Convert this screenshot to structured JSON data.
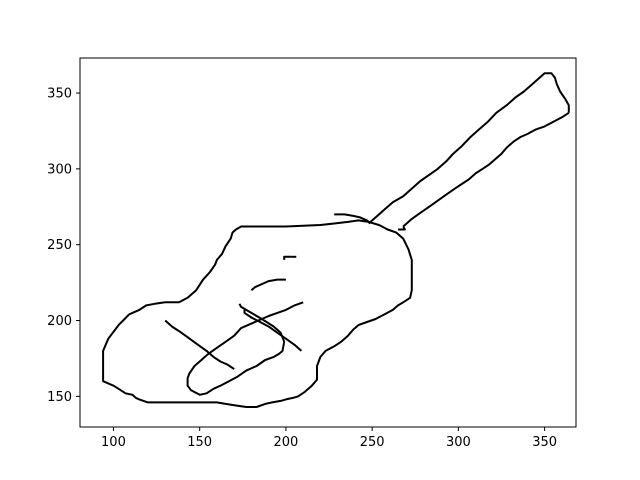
{
  "chart_data": {
    "type": "line",
    "title": "",
    "xlabel": "",
    "ylabel": "",
    "xlim": [
      80.6,
      368.2
    ],
    "ylim": [
      129.8,
      373.1
    ],
    "grid": false,
    "line_color": "#000000",
    "x_ticks": [
      {
        "value": 100,
        "label": "100"
      },
      {
        "value": 150,
        "label": "150"
      },
      {
        "value": 200,
        "label": "200"
      },
      {
        "value": 250,
        "label": "250"
      },
      {
        "value": 300,
        "label": "300"
      },
      {
        "value": 350,
        "label": "350"
      }
    ],
    "y_ticks": [
      {
        "value": 150,
        "label": "150"
      },
      {
        "value": 200,
        "label": "200"
      },
      {
        "value": 250,
        "label": "250"
      },
      {
        "value": 300,
        "label": "300"
      },
      {
        "value": 350,
        "label": "350"
      }
    ],
    "series": [
      {
        "points": [
          [
            109,
            204
          ],
          [
            103,
            197
          ],
          [
            97,
            188
          ],
          [
            94,
            180
          ],
          [
            94,
            170
          ],
          [
            94,
            160
          ],
          [
            100,
            157
          ],
          [
            103,
            155
          ],
          [
            107,
            152
          ],
          [
            111,
            151
          ],
          [
            113,
            149
          ],
          [
            115,
            148
          ],
          [
            120,
            146
          ],
          [
            125,
            146
          ],
          [
            135,
            146
          ],
          [
            145,
            146
          ],
          [
            155,
            146
          ],
          [
            160,
            146
          ],
          [
            165,
            145
          ],
          [
            171,
            144
          ],
          [
            177,
            143
          ],
          [
            183,
            143
          ],
          [
            188,
            145
          ],
          [
            192,
            146
          ],
          [
            197,
            147
          ],
          [
            200,
            148
          ],
          [
            204,
            149
          ],
          [
            207,
            150
          ],
          [
            211,
            153
          ],
          [
            215,
            157
          ],
          [
            218,
            161
          ],
          [
            218,
            170
          ],
          [
            220,
            176
          ],
          [
            223,
            180
          ],
          [
            228,
            183
          ],
          [
            232,
            186
          ],
          [
            236,
            190
          ],
          [
            239,
            194
          ],
          [
            242,
            197
          ],
          [
            247,
            199
          ],
          [
            252,
            201
          ],
          [
            257,
            204
          ],
          [
            262,
            207
          ],
          [
            265,
            210
          ],
          [
            268,
            212
          ],
          [
            272,
            215
          ],
          [
            273,
            220
          ],
          [
            273,
            227
          ],
          [
            273,
            235
          ],
          [
            273,
            240
          ],
          [
            271,
            247
          ],
          [
            268,
            254
          ],
          [
            264,
            258
          ],
          [
            259,
            260
          ],
          [
            254,
            263
          ],
          [
            248,
            265
          ],
          [
            242,
            266
          ],
          [
            236,
            265
          ],
          [
            228,
            264
          ],
          [
            220,
            263
          ],
          [
            200,
            262
          ],
          [
            180,
            262
          ],
          [
            174,
            262
          ],
          [
            171,
            260
          ],
          [
            169,
            258
          ],
          [
            168,
            254
          ],
          [
            165,
            249
          ],
          [
            163,
            244
          ],
          [
            160,
            240
          ],
          [
            159,
            237
          ],
          [
            156,
            232
          ],
          [
            152,
            227
          ],
          [
            148,
            220
          ],
          [
            143,
            215
          ],
          [
            138,
            212
          ],
          [
            130,
            212
          ],
          [
            124,
            211
          ],
          [
            119,
            210
          ],
          [
            115,
            207
          ],
          [
            111,
            205
          ],
          [
            109,
            204
          ]
        ]
      },
      {
        "points": [
          [
            199,
            240
          ],
          [
            199,
            242
          ],
          [
            203,
            242
          ]
        ]
      },
      {
        "points": [
          [
            203,
            242
          ],
          [
            206,
            242
          ]
        ]
      },
      {
        "points": [
          [
            173,
            211
          ],
          [
            174,
            209
          ],
          [
            180,
            205
          ],
          [
            186,
            201
          ],
          [
            193,
            196
          ],
          [
            197,
            192
          ],
          [
            199,
            186
          ],
          [
            198,
            180
          ],
          [
            196,
            178
          ],
          [
            193,
            176
          ],
          [
            188,
            174
          ],
          [
            183,
            170
          ],
          [
            177,
            167
          ],
          [
            172,
            163
          ],
          [
            167,
            160
          ],
          [
            162,
            157
          ],
          [
            158,
            155
          ],
          [
            154,
            152
          ],
          [
            150,
            151
          ],
          [
            145,
            154
          ],
          [
            143,
            157
          ],
          [
            143,
            162
          ],
          [
            144,
            165
          ],
          [
            147,
            170
          ],
          [
            151,
            174
          ],
          [
            155,
            178
          ],
          [
            160,
            182
          ],
          [
            165,
            186
          ],
          [
            170,
            190
          ],
          [
            174,
            195
          ],
          [
            180,
            198
          ],
          [
            186,
            201
          ],
          [
            190,
            203
          ],
          [
            195,
            205
          ],
          [
            200,
            207
          ],
          [
            205,
            210
          ],
          [
            210,
            212
          ]
        ]
      },
      {
        "points": [
          [
            130,
            200
          ],
          [
            134,
            196
          ],
          [
            138,
            193
          ],
          [
            143,
            189
          ],
          [
            149,
            184
          ],
          [
            154,
            180
          ],
          [
            158,
            176
          ],
          [
            162,
            173
          ],
          [
            166,
            171
          ],
          [
            170,
            168
          ]
        ]
      },
      {
        "points": [
          [
            180,
            220
          ],
          [
            182,
            222
          ],
          [
            186,
            224
          ],
          [
            190,
            226
          ],
          [
            195,
            227
          ],
          [
            200,
            227
          ]
        ]
      },
      {
        "points": [
          [
            176,
            207
          ],
          [
            176,
            205
          ],
          [
            180,
            202
          ],
          [
            185,
            199
          ],
          [
            190,
            196
          ],
          [
            195,
            192
          ],
          [
            200,
            188
          ],
          [
            205,
            184
          ],
          [
            209,
            180
          ]
        ]
      },
      {
        "points": [
          [
            228,
            270
          ],
          [
            234,
            270
          ],
          [
            239,
            269
          ],
          [
            243,
            268
          ],
          [
            247,
            266
          ],
          [
            249,
            264
          ]
        ]
      },
      {
        "points": [
          [
            248,
            264
          ],
          [
            252,
            268
          ],
          [
            257,
            273
          ],
          [
            262,
            278
          ],
          [
            268,
            282
          ],
          [
            273,
            287
          ],
          [
            278,
            292
          ],
          [
            283,
            296
          ],
          [
            288,
            300
          ],
          [
            293,
            305
          ],
          [
            297,
            310
          ],
          [
            302,
            315
          ],
          [
            307,
            321
          ],
          [
            312,
            326
          ],
          [
            317,
            331
          ],
          [
            322,
            337
          ],
          [
            328,
            342
          ],
          [
            333,
            347
          ],
          [
            338,
            351
          ],
          [
            342,
            355
          ],
          [
            346,
            359
          ],
          [
            350,
            363
          ],
          [
            354,
            363
          ],
          [
            356,
            360
          ],
          [
            357,
            356
          ],
          [
            359,
            351
          ],
          [
            362,
            346
          ],
          [
            364,
            342
          ],
          [
            364,
            337
          ]
        ]
      },
      {
        "points": [
          [
            364,
            337
          ],
          [
            360,
            334
          ],
          [
            355,
            331
          ],
          [
            350,
            328
          ],
          [
            345,
            326
          ],
          [
            340,
            323
          ],
          [
            336,
            321
          ],
          [
            332,
            318
          ],
          [
            328,
            314
          ],
          [
            325,
            310
          ],
          [
            322,
            307
          ],
          [
            318,
            303
          ],
          [
            314,
            300
          ],
          [
            310,
            297
          ],
          [
            306,
            293
          ],
          [
            302,
            290
          ],
          [
            298,
            287
          ],
          [
            293,
            283
          ],
          [
            288,
            279
          ],
          [
            283,
            275
          ],
          [
            278,
            271
          ],
          [
            273,
            267
          ],
          [
            268,
            262
          ]
        ]
      },
      {
        "points": [
          [
            268,
            262
          ],
          [
            269,
            260
          ],
          [
            265,
            260
          ]
        ]
      },
      {
        "points": [
          [
            249,
            264
          ],
          [
            249,
            265
          ]
        ]
      }
    ]
  }
}
